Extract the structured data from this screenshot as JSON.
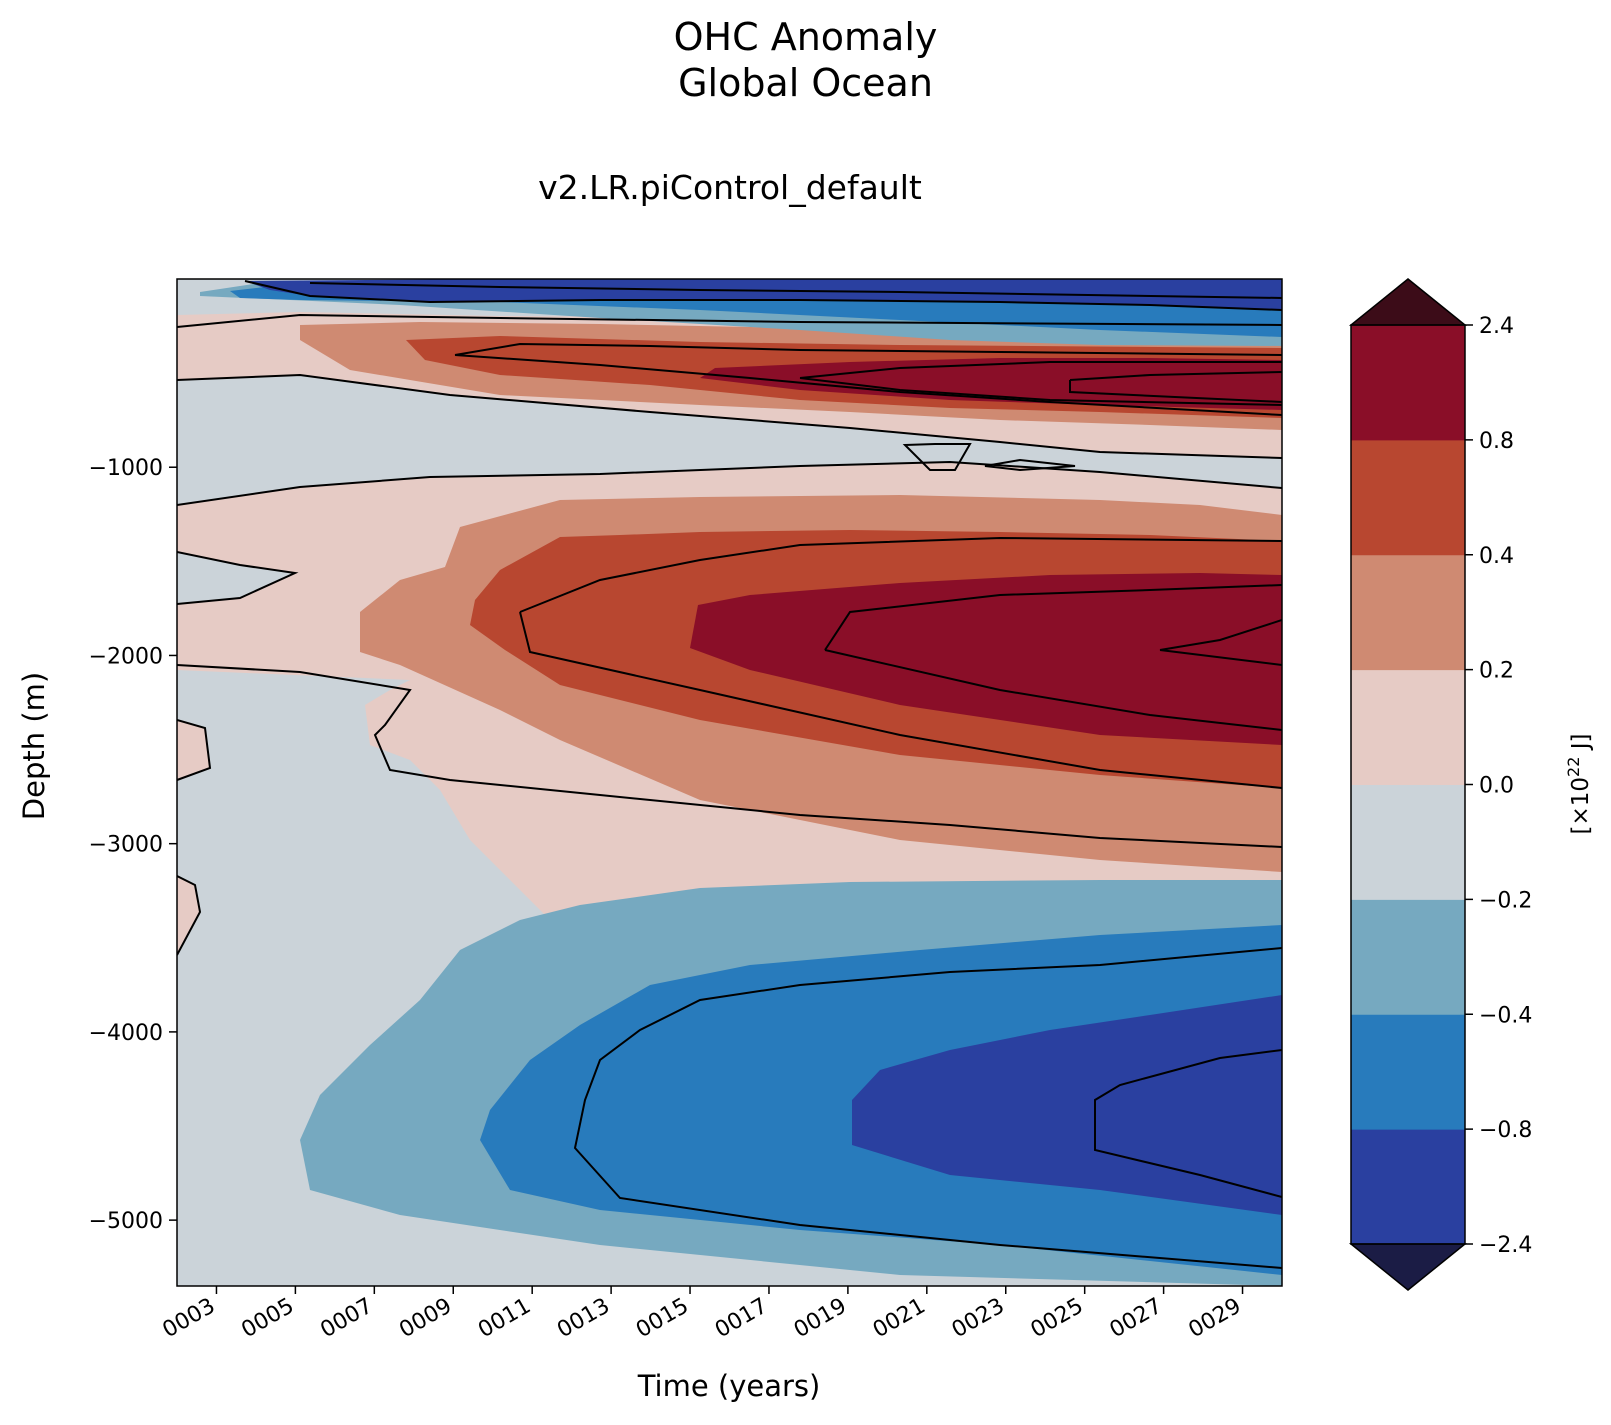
{
  "chart_data": {
    "type": "contourf",
    "title_lines": [
      "OHC Anomaly",
      "Global Ocean"
    ],
    "subtitle": "v2.LR.piControl_default",
    "xlabel": "Time (years)",
    "ylabel": "Depth (m)",
    "xlim": [
      2,
      30
    ],
    "ylim": [
      -5350,
      0
    ],
    "xticks": [
      3,
      5,
      7,
      9,
      11,
      13,
      15,
      17,
      19,
      21,
      23,
      25,
      27,
      29
    ],
    "xticklabels": [
      "0003",
      "0005",
      "0007",
      "0009",
      "0011",
      "0013",
      "0015",
      "0017",
      "0019",
      "0021",
      "0023",
      "0025",
      "0027",
      "0029"
    ],
    "yticks": [
      -1000,
      -2000,
      -3000,
      -4000,
      -5000
    ],
    "yticklabels": [
      "−1000",
      "−2000",
      "−3000",
      "−4000",
      "−5000"
    ],
    "colorbar": {
      "label_prefix": "[×10",
      "label_exp": "22",
      "label_suffix": " J]",
      "levels": [
        -2.4,
        -0.8,
        -0.4,
        -0.2,
        0.0,
        0.2,
        0.4,
        0.8,
        2.4
      ],
      "ticklabels": [
        "−2.4",
        "−0.8",
        "−0.4",
        "−0.2",
        "0.0",
        "0.2",
        "0.4",
        "0.8",
        "2.4"
      ],
      "colors": [
        "#2a40a0",
        "#287bbc",
        "#76a9c0",
        "#cbd3d9",
        "#e6cbc5",
        "#cf8a72",
        "#b84730",
        "#8a0e28"
      ],
      "extend_low_color": "#1b1c45",
      "extend_high_color": "#3c0c18",
      "extend": "both"
    },
    "features": [
      {
        "name": "deep-warm-core",
        "value_range": [
          0.8,
          2.4
        ],
        "years": [
          15.5,
          30
        ],
        "depth_center": -1950
      },
      {
        "name": "upper-warm-core",
        "value_range": [
          0.8,
          2.4
        ],
        "years": [
          17,
          30
        ],
        "depth_center": -550
      },
      {
        "name": "abyssal-cold-core",
        "value_range": [
          -2.4,
          -0.8
        ],
        "years": [
          19.2,
          30
        ],
        "depth_center": -4500
      },
      {
        "name": "surface-cold-layer",
        "value_range": [
          -2.4,
          -0.8
        ],
        "years": [
          3,
          30
        ],
        "depth_center": -100
      }
    ]
  }
}
